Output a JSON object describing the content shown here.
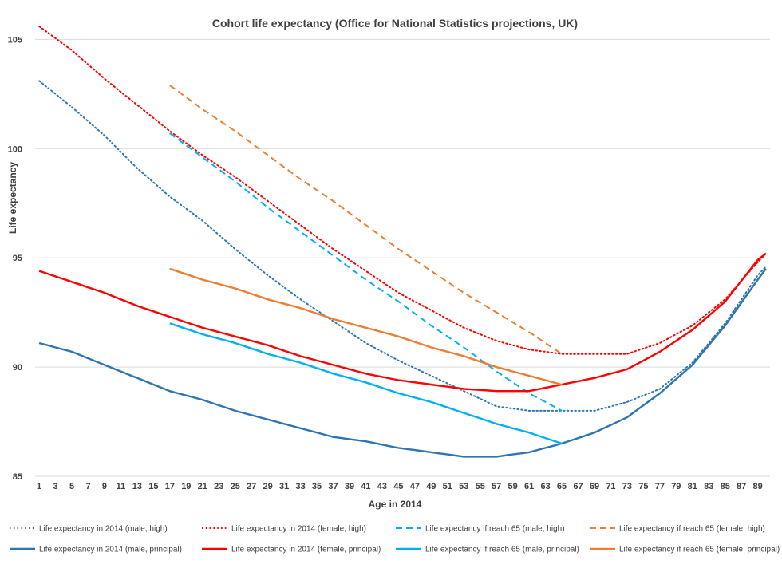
{
  "chart_data": {
    "type": "line",
    "title": "Cohort life expectancy (Office for National Statistics projections, UK)",
    "xlabel": "Age in 2014",
    "ylabel": "Life expectancy",
    "xlim": [
      1,
      90
    ],
    "ylim": [
      85,
      106
    ],
    "yticks": [
      85,
      90,
      95,
      100,
      105
    ],
    "xticks": [
      1,
      3,
      5,
      7,
      9,
      11,
      13,
      15,
      17,
      19,
      21,
      23,
      25,
      27,
      29,
      31,
      33,
      35,
      37,
      39,
      41,
      43,
      45,
      47,
      49,
      51,
      53,
      55,
      57,
      59,
      61,
      63,
      65,
      67,
      69,
      71,
      73,
      75,
      77,
      79,
      81,
      83,
      85,
      87,
      89
    ],
    "grid": true,
    "legend_position": "bottom",
    "series": [
      {
        "name": "Life expectancy in 2014 (male, high)",
        "color": "#2e75b6",
        "style": "dotted",
        "points": [
          [
            1,
            103.1
          ],
          [
            5,
            101.9
          ],
          [
            9,
            100.6
          ],
          [
            13,
            99.1
          ],
          [
            17,
            97.8
          ],
          [
            21,
            96.7
          ],
          [
            25,
            95.4
          ],
          [
            29,
            94.2
          ],
          [
            33,
            93.1
          ],
          [
            37,
            92.1
          ],
          [
            41,
            91.1
          ],
          [
            45,
            90.3
          ],
          [
            49,
            89.6
          ],
          [
            53,
            88.9
          ],
          [
            57,
            88.2
          ],
          [
            61,
            88.0
          ],
          [
            65,
            88.0
          ],
          [
            69,
            88.0
          ],
          [
            73,
            88.4
          ],
          [
            77,
            89.0
          ],
          [
            81,
            90.2
          ],
          [
            85,
            92.0
          ],
          [
            89,
            94.2
          ],
          [
            90,
            94.6
          ]
        ]
      },
      {
        "name": "Life expectancy in 2014 (female, high)",
        "color": "#ff0000",
        "style": "dotted",
        "points": [
          [
            1,
            105.6
          ],
          [
            5,
            104.5
          ],
          [
            9,
            103.2
          ],
          [
            13,
            102.0
          ],
          [
            17,
            100.8
          ],
          [
            21,
            99.7
          ],
          [
            25,
            98.7
          ],
          [
            29,
            97.6
          ],
          [
            33,
            96.5
          ],
          [
            37,
            95.4
          ],
          [
            41,
            94.4
          ],
          [
            45,
            93.4
          ],
          [
            49,
            92.6
          ],
          [
            53,
            91.8
          ],
          [
            57,
            91.2
          ],
          [
            61,
            90.8
          ],
          [
            65,
            90.6
          ],
          [
            69,
            90.6
          ],
          [
            73,
            90.6
          ],
          [
            77,
            91.1
          ],
          [
            81,
            91.9
          ],
          [
            85,
            93.1
          ],
          [
            89,
            94.8
          ],
          [
            90,
            95.2
          ]
        ]
      },
      {
        "name": "Life expectancy if reach 65 (male, high)",
        "color": "#00b0f0",
        "style": "dashed",
        "points": [
          [
            17,
            100.7
          ],
          [
            21,
            99.6
          ],
          [
            25,
            98.5
          ],
          [
            29,
            97.3
          ],
          [
            33,
            96.2
          ],
          [
            37,
            95.1
          ],
          [
            41,
            94.0
          ],
          [
            45,
            93.0
          ],
          [
            49,
            91.9
          ],
          [
            53,
            90.9
          ],
          [
            57,
            89.8
          ],
          [
            61,
            88.8
          ],
          [
            65,
            88.0
          ]
        ]
      },
      {
        "name": "Life expectancy if reach 65 (female, high)",
        "color": "#ed7d31",
        "style": "dashed",
        "points": [
          [
            17,
            102.9
          ],
          [
            21,
            101.8
          ],
          [
            25,
            100.8
          ],
          [
            29,
            99.7
          ],
          [
            33,
            98.6
          ],
          [
            37,
            97.6
          ],
          [
            41,
            96.5
          ],
          [
            45,
            95.4
          ],
          [
            49,
            94.4
          ],
          [
            53,
            93.4
          ],
          [
            57,
            92.5
          ],
          [
            61,
            91.6
          ],
          [
            65,
            90.6
          ]
        ]
      },
      {
        "name": "Life expectancy in 2014 (male, principal)",
        "color": "#2e75b6",
        "style": "solid",
        "points": [
          [
            1,
            91.1
          ],
          [
            5,
            90.7
          ],
          [
            9,
            90.1
          ],
          [
            13,
            89.5
          ],
          [
            17,
            88.9
          ],
          [
            21,
            88.5
          ],
          [
            25,
            88.0
          ],
          [
            29,
            87.6
          ],
          [
            33,
            87.2
          ],
          [
            37,
            86.8
          ],
          [
            41,
            86.6
          ],
          [
            45,
            86.3
          ],
          [
            49,
            86.1
          ],
          [
            53,
            85.9
          ],
          [
            57,
            85.9
          ],
          [
            61,
            86.1
          ],
          [
            65,
            86.5
          ],
          [
            69,
            87.0
          ],
          [
            73,
            87.7
          ],
          [
            77,
            88.8
          ],
          [
            81,
            90.1
          ],
          [
            85,
            91.9
          ],
          [
            89,
            94.0
          ],
          [
            90,
            94.5
          ]
        ]
      },
      {
        "name": "Life expectancy in 2014 (female, principal)",
        "color": "#ff0000",
        "style": "solid",
        "points": [
          [
            1,
            94.4
          ],
          [
            5,
            93.9
          ],
          [
            9,
            93.4
          ],
          [
            13,
            92.8
          ],
          [
            17,
            92.3
          ],
          [
            21,
            91.8
          ],
          [
            25,
            91.4
          ],
          [
            29,
            91.0
          ],
          [
            33,
            90.5
          ],
          [
            37,
            90.1
          ],
          [
            41,
            89.7
          ],
          [
            45,
            89.4
          ],
          [
            49,
            89.2
          ],
          [
            53,
            89.0
          ],
          [
            57,
            88.9
          ],
          [
            61,
            88.9
          ],
          [
            65,
            89.2
          ],
          [
            69,
            89.5
          ],
          [
            73,
            89.9
          ],
          [
            77,
            90.7
          ],
          [
            81,
            91.7
          ],
          [
            85,
            93.0
          ],
          [
            89,
            94.9
          ],
          [
            90,
            95.2
          ]
        ]
      },
      {
        "name": "Life expectancy if reach 65 (male, principal)",
        "color": "#00b0f0",
        "style": "solid",
        "points": [
          [
            17,
            92.0
          ],
          [
            21,
            91.5
          ],
          [
            25,
            91.1
          ],
          [
            29,
            90.6
          ],
          [
            33,
            90.2
          ],
          [
            37,
            89.7
          ],
          [
            41,
            89.3
          ],
          [
            45,
            88.8
          ],
          [
            49,
            88.4
          ],
          [
            53,
            87.9
          ],
          [
            57,
            87.4
          ],
          [
            61,
            87.0
          ],
          [
            65,
            86.5
          ]
        ]
      },
      {
        "name": "Life expectancy if reach 65 (female, principal)",
        "color": "#ed7d31",
        "style": "solid",
        "points": [
          [
            17,
            94.5
          ],
          [
            21,
            94.0
          ],
          [
            25,
            93.6
          ],
          [
            29,
            93.1
          ],
          [
            33,
            92.7
          ],
          [
            37,
            92.2
          ],
          [
            41,
            91.8
          ],
          [
            45,
            91.4
          ],
          [
            49,
            90.9
          ],
          [
            53,
            90.5
          ],
          [
            57,
            90.0
          ],
          [
            61,
            89.6
          ],
          [
            65,
            89.2
          ]
        ]
      }
    ]
  }
}
